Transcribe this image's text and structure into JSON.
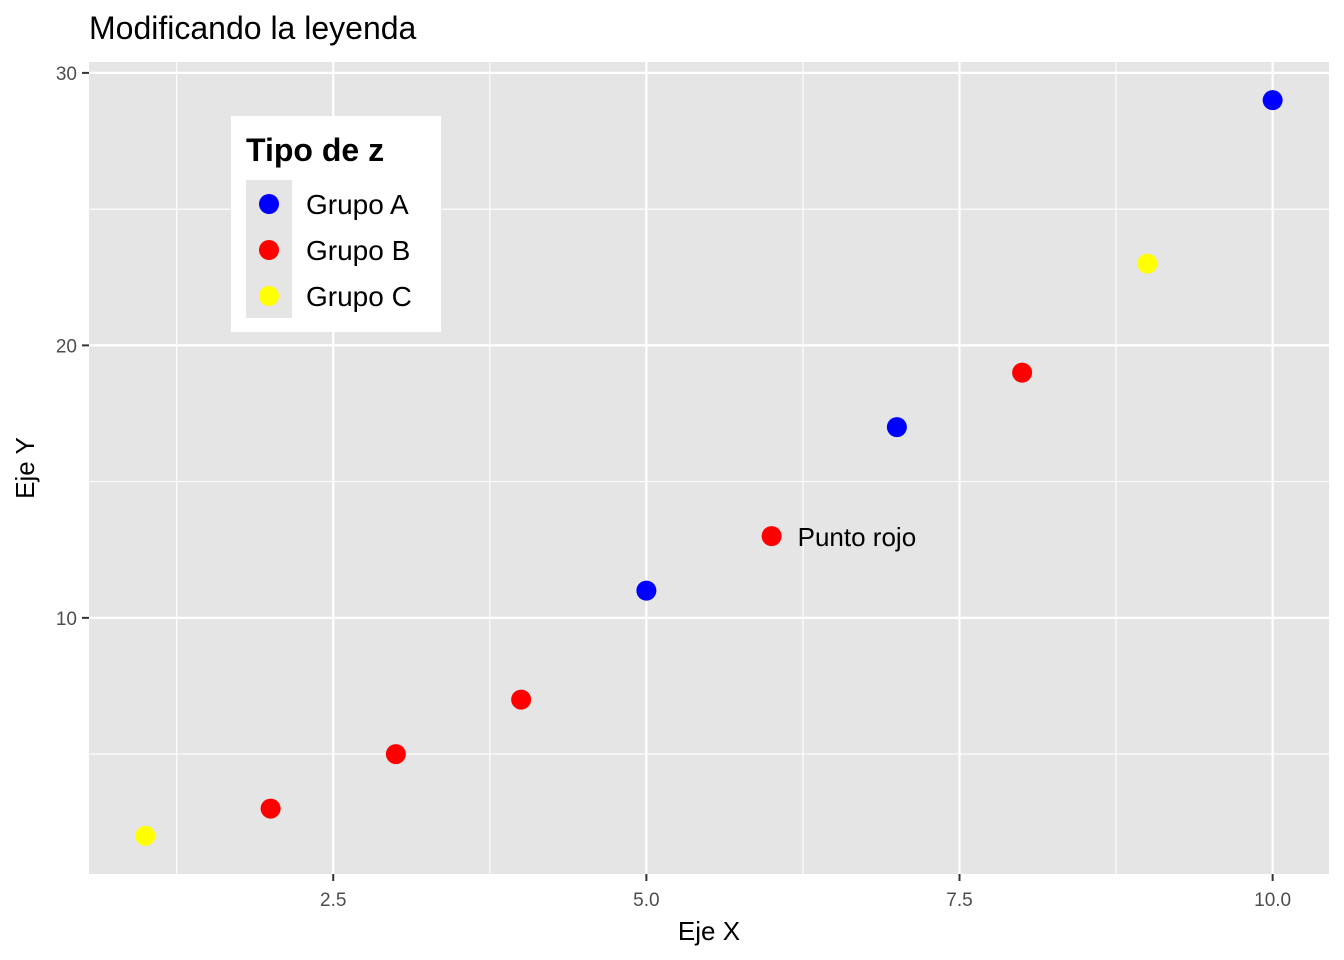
{
  "chart_data": {
    "type": "scatter",
    "title": "Modificando la leyenda",
    "xlabel": "Eje X",
    "ylabel": "Eje Y",
    "xlim": [
      0.55,
      10.45
    ],
    "ylim": [
      0.6,
      30.4
    ],
    "x_ticks": [
      2.5,
      5.0,
      7.5,
      10.0
    ],
    "x_tick_labels": [
      "2.5",
      "5.0",
      "7.5",
      "10.0"
    ],
    "y_ticks": [
      10,
      20,
      30
    ],
    "y_tick_labels": [
      "10",
      "20",
      "30"
    ],
    "grid": true,
    "background": "#e5e5e5",
    "legend": {
      "title": "Tipo de z",
      "position": "top-left",
      "entries": [
        {
          "label": "Grupo A",
          "color": "#0000ff"
        },
        {
          "label": "Grupo B",
          "color": "#ff0000"
        },
        {
          "label": "Grupo C",
          "color": "#ffff00"
        }
      ]
    },
    "series": [
      {
        "name": "Grupo A",
        "color": "#0000ff",
        "x": [
          5,
          7,
          10
        ],
        "y": [
          11,
          17,
          29
        ]
      },
      {
        "name": "Grupo B",
        "color": "#ff0000",
        "x": [
          2,
          3,
          4,
          6,
          8
        ],
        "y": [
          3,
          5,
          7,
          13,
          19
        ]
      },
      {
        "name": "Grupo C",
        "color": "#ffff00",
        "x": [
          1,
          9
        ],
        "y": [
          2,
          23
        ]
      }
    ],
    "annotations": [
      {
        "text": "Punto rojo",
        "x": 6,
        "y": 13
      }
    ]
  }
}
